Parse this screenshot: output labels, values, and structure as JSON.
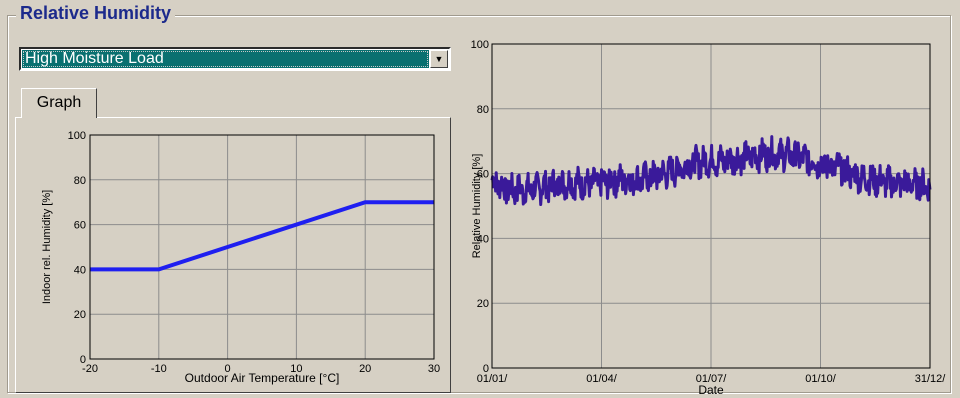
{
  "window": {
    "group_title": "Relative Humidity"
  },
  "moisture_load_select": {
    "selected": "High Moisture Load"
  },
  "tabs": [
    {
      "label": "Graph"
    }
  ],
  "colors": {
    "background": "#d6d0c4",
    "title": "#1c2a8c",
    "select_highlight": "#0a7070",
    "left_series": "#1f1ff0",
    "right_series": "#3a1a9a",
    "grid": "#8c8c8c"
  },
  "chart_data": [
    {
      "type": "line",
      "title": "",
      "xlabel": "Outdoor Air Temperature [°C]",
      "ylabel": "Indoor rel. Humidity [%]",
      "xlim": [
        -20,
        30
      ],
      "ylim": [
        0,
        100
      ],
      "x_ticks": [
        "-20",
        "-10",
        "0",
        "10",
        "20",
        "30"
      ],
      "y_ticks": [
        "0",
        "20",
        "40",
        "60",
        "80",
        "100"
      ],
      "grid": true,
      "series": [
        {
          "x": [
            -20,
            -10,
            20,
            30
          ],
          "y": [
            40,
            40,
            70,
            70
          ]
        }
      ]
    },
    {
      "type": "line",
      "title": "",
      "xlabel": "Date",
      "ylabel": "Relative Humidity [%]",
      "xlim": [
        "01/01/",
        "31/12/"
      ],
      "ylim": [
        0,
        100
      ],
      "x_ticks": [
        "01/01/",
        "01/04/",
        "01/07/",
        "01/10/",
        "31/12/"
      ],
      "y_ticks": [
        "0",
        "20",
        "40",
        "60",
        "80",
        "100"
      ],
      "grid": true,
      "series": [
        {
          "x": [
            "01/01/",
            "15/01/",
            "01/02/",
            "15/02/",
            "01/03/",
            "15/03/",
            "01/04/",
            "15/04/",
            "01/05/",
            "15/05/",
            "01/06/",
            "15/06/",
            "01/07/",
            "15/07/",
            "01/08/",
            "15/08/",
            "01/09/",
            "15/09/",
            "01/10/",
            "15/10/",
            "01/11/",
            "15/11/",
            "01/12/",
            "15/12/",
            "31/12/"
          ],
          "y": [
            58,
            55,
            55,
            56,
            57,
            57,
            57,
            58,
            58,
            59,
            61,
            63,
            64,
            64,
            65,
            66,
            66,
            65,
            63,
            62,
            59,
            58,
            57,
            57,
            56
          ]
        }
      ]
    }
  ]
}
